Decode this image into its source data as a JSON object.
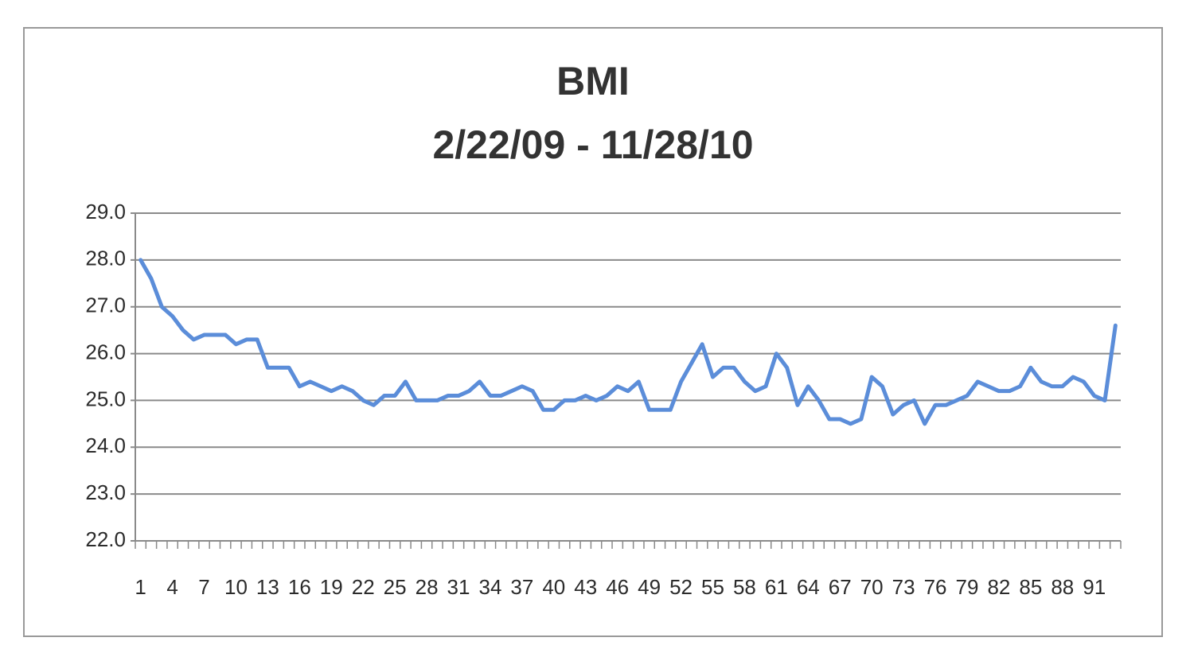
{
  "chart_data": {
    "type": "line",
    "title": "BMI",
    "subtitle": "2/22/09 - 11/28/10",
    "categories": [
      "1",
      null,
      null,
      "4",
      null,
      null,
      "7",
      null,
      null,
      "10",
      null,
      null,
      "13",
      null,
      null,
      "16",
      null,
      null,
      "19",
      null,
      null,
      "22",
      null,
      null,
      "25",
      null,
      null,
      "28",
      null,
      null,
      "31",
      null,
      null,
      "34",
      null,
      null,
      "37",
      null,
      null,
      "40",
      null,
      null,
      "43",
      null,
      null,
      "46",
      null,
      null,
      "49",
      null,
      null,
      "52",
      null,
      null,
      "55",
      null,
      null,
      "58",
      null,
      null,
      "61",
      null,
      null,
      "64",
      null,
      null,
      "67",
      null,
      null,
      "70",
      null,
      null,
      "73",
      null,
      null,
      "76",
      null,
      null,
      "79",
      null,
      null,
      "82",
      null,
      null,
      "85",
      null,
      null,
      "88",
      null,
      null,
      "91",
      null,
      null
    ],
    "values": [
      28.0,
      27.6,
      27.0,
      26.8,
      26.5,
      26.3,
      26.4,
      26.4,
      26.4,
      26.2,
      26.3,
      26.3,
      25.7,
      25.7,
      25.7,
      25.3,
      25.4,
      25.3,
      25.2,
      25.3,
      25.2,
      25.0,
      24.9,
      25.1,
      25.1,
      25.4,
      25.0,
      25.0,
      25.0,
      25.1,
      25.1,
      25.2,
      25.4,
      25.1,
      25.1,
      25.2,
      25.3,
      25.2,
      24.8,
      24.8,
      25.0,
      25.0,
      25.1,
      25.0,
      25.1,
      25.3,
      25.2,
      25.4,
      24.8,
      24.8,
      24.8,
      25.4,
      25.8,
      26.2,
      25.5,
      25.7,
      25.7,
      25.4,
      25.2,
      25.3,
      26.0,
      25.7,
      24.9,
      25.3,
      25.0,
      24.6,
      24.6,
      24.5,
      24.6,
      25.5,
      25.3,
      24.7,
      24.9,
      25.0,
      24.5,
      24.9,
      24.9,
      25.0,
      25.1,
      25.4,
      25.3,
      25.2,
      25.2,
      25.3,
      25.7,
      25.4,
      25.3,
      25.3,
      25.5,
      25.4,
      25.1,
      25.0,
      26.6
    ],
    "color": "#5b8dd9",
    "ylim": [
      22,
      29
    ],
    "yticks": [
      {
        "value": 22,
        "label": "22.0"
      },
      {
        "value": 23,
        "label": "23.0"
      },
      {
        "value": 24,
        "label": "24.0"
      },
      {
        "value": 25,
        "label": "25.0"
      },
      {
        "value": 26,
        "label": "26.0"
      },
      {
        "value": 27,
        "label": "27.0"
      },
      {
        "value": 28,
        "label": "28.0"
      },
      {
        "value": 29,
        "label": "29.0"
      }
    ],
    "grid": true
  }
}
